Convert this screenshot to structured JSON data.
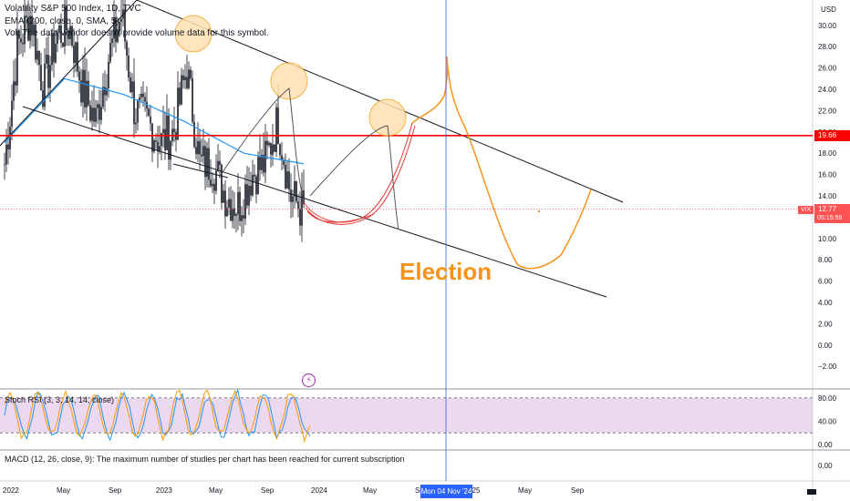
{
  "header": {
    "symbol_line": "Volatility S&P 500 Index, 1D, TVC",
    "ema_line": "EMA (200, close, 0, SMA, 5)",
    "vol_line": "Vol: The data vendor doesn't provide volume data for this symbol.",
    "currency": "USD"
  },
  "annotation": {
    "text": "Election",
    "color": "#f7931a"
  },
  "price_axis": {
    "ticks": [
      "30.00",
      "28.00",
      "26.00",
      "24.00",
      "22.00",
      "20.00",
      "18.00",
      "16.00",
      "14.00",
      "12.00",
      "10.00",
      "8.00",
      "6.00",
      "4.00",
      "2.00",
      "0.00",
      "−2.00"
    ]
  },
  "price_labels": {
    "horizontal_level": "19.66",
    "last_price": "12.77",
    "symbol_tag": "VIX",
    "countdown": "05:15:59"
  },
  "time_axis": {
    "labels": [
      "2022",
      "May",
      "Sep",
      "2023",
      "May",
      "Sep",
      "2024",
      "May",
      "Se",
      "'25",
      "May",
      "Sep"
    ],
    "cursor_label": "Mon 04 Nov '24"
  },
  "stoch_pane": {
    "label": "Stoch RSI (3, 3, 14, 14, close)",
    "ticks": [
      "80.00",
      "40.00",
      "0.00"
    ],
    "band_upper": 80,
    "band_lower": 20
  },
  "macd_pane": {
    "message": "MACD (12, 26, close, 9): The maximum number of studies per chart has been reached for current subscription",
    "ticks": [
      "0.00"
    ]
  },
  "colors": {
    "candle": "#131722",
    "ema": "#2196f3",
    "level_line": "#ff0000",
    "projection": "#f7931a",
    "highlight_fill": "#ffe0b2",
    "highlight_stroke": "#f5a623",
    "red_sketch": "#e53935",
    "stoch_k": "#2196f3",
    "stoch_d": "#ff9800",
    "stoch_band": "#e1bee7",
    "cursor": "#2962ff"
  },
  "chart_data": {
    "type": "line",
    "series": [
      {
        "name": "VIX",
        "points": [
          [
            "2022-01",
            17
          ],
          [
            "2022-02",
            28
          ],
          [
            "2022-03",
            31
          ],
          [
            "2022-04",
            24
          ],
          [
            "2022-05",
            29
          ],
          [
            "2022-06",
            30
          ],
          [
            "2022-07",
            24
          ],
          [
            "2022-08",
            21
          ],
          [
            "2022-09",
            27
          ],
          [
            "2022-10",
            31
          ],
          [
            "2022-11",
            22
          ],
          [
            "2022-12",
            21
          ],
          [
            "2023-01",
            19
          ],
          [
            "2023-02",
            20
          ],
          [
            "2023-03",
            26
          ],
          [
            "2023-04",
            17
          ],
          [
            "2023-05",
            17
          ],
          [
            "2023-06",
            14
          ],
          [
            "2023-07",
            13
          ],
          [
            "2023-08",
            16
          ],
          [
            "2023-09",
            17
          ],
          [
            "2023-10",
            21
          ],
          [
            "2023-11",
            14
          ],
          [
            "2023-12",
            12.5
          ]
        ]
      },
      {
        "name": "EMA 200",
        "points": [
          [
            "2022-01",
            19
          ],
          [
            "2022-06",
            25
          ],
          [
            "2022-12",
            23.5
          ],
          [
            "2023-04",
            21
          ],
          [
            "2023-08",
            18
          ],
          [
            "2023-12",
            17
          ]
        ]
      }
    ],
    "horizontal_level": 19.66,
    "last_price": 12.77,
    "ylim": [
      -2.5,
      32
    ]
  }
}
